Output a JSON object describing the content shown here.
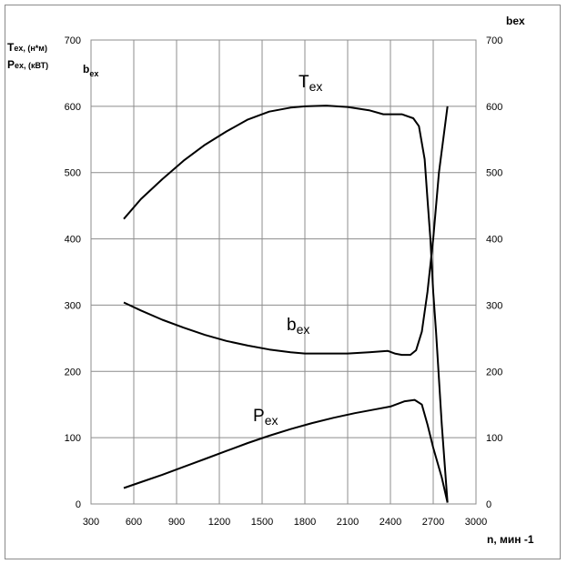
{
  "chart_data": {
    "type": "line",
    "x_axis": {
      "label": "n, мин -1",
      "range": [
        300,
        3000
      ],
      "ticks": [
        300,
        600,
        900,
        1200,
        1500,
        1800,
        2100,
        2400,
        2700,
        3000
      ]
    },
    "y_axis_left": {
      "label_T": "T",
      "label_T_sub": "ex, (н*м)",
      "label_P": "P",
      "label_P_sub": "ex, (кВТ)",
      "label_b": "b",
      "label_b_sub": "ex",
      "range": [
        0,
        700
      ],
      "ticks": [
        0,
        100,
        200,
        300,
        400,
        500,
        600,
        700
      ]
    },
    "y_axis_right": {
      "label": "bex",
      "range": [
        0,
        700
      ],
      "ticks": [
        0,
        100,
        200,
        300,
        400,
        500,
        600,
        700
      ]
    },
    "grid": true,
    "series": [
      {
        "name": "T",
        "name_sub": "ex",
        "points": [
          [
            530,
            430
          ],
          [
            650,
            460
          ],
          [
            800,
            490
          ],
          [
            950,
            518
          ],
          [
            1100,
            542
          ],
          [
            1250,
            562
          ],
          [
            1400,
            580
          ],
          [
            1550,
            592
          ],
          [
            1700,
            598
          ],
          [
            1800,
            600
          ],
          [
            1950,
            601
          ],
          [
            2100,
            599
          ],
          [
            2250,
            594
          ],
          [
            2350,
            588
          ],
          [
            2480,
            588
          ],
          [
            2560,
            582
          ],
          [
            2600,
            570
          ],
          [
            2640,
            520
          ],
          [
            2660,
            460
          ],
          [
            2680,
            400
          ],
          [
            2700,
            320
          ],
          [
            2720,
            260
          ],
          [
            2760,
            120
          ],
          [
            2800,
            2
          ]
        ]
      },
      {
        "name": "b",
        "name_sub": "ex",
        "points": [
          [
            530,
            304
          ],
          [
            650,
            292
          ],
          [
            800,
            278
          ],
          [
            950,
            266
          ],
          [
            1100,
            255
          ],
          [
            1250,
            246
          ],
          [
            1400,
            239
          ],
          [
            1550,
            233
          ],
          [
            1700,
            229
          ],
          [
            1800,
            227
          ],
          [
            1950,
            227
          ],
          [
            2100,
            227
          ],
          [
            2250,
            229
          ],
          [
            2380,
            231
          ],
          [
            2430,
            227
          ],
          [
            2480,
            225
          ],
          [
            2540,
            225
          ],
          [
            2580,
            232
          ],
          [
            2620,
            260
          ],
          [
            2660,
            320
          ],
          [
            2700,
            400
          ],
          [
            2740,
            500
          ],
          [
            2800,
            600
          ]
        ]
      },
      {
        "name": "P",
        "name_sub": "ex",
        "points": [
          [
            530,
            24
          ],
          [
            650,
            33
          ],
          [
            800,
            44
          ],
          [
            950,
            56
          ],
          [
            1100,
            68
          ],
          [
            1250,
            80
          ],
          [
            1400,
            92
          ],
          [
            1550,
            103
          ],
          [
            1700,
            113
          ],
          [
            1850,
            122
          ],
          [
            2000,
            130
          ],
          [
            2150,
            137
          ],
          [
            2300,
            143
          ],
          [
            2400,
            147
          ],
          [
            2500,
            155
          ],
          [
            2570,
            157
          ],
          [
            2620,
            150
          ],
          [
            2660,
            120
          ],
          [
            2700,
            85
          ],
          [
            2760,
            40
          ],
          [
            2800,
            2
          ]
        ]
      }
    ]
  }
}
